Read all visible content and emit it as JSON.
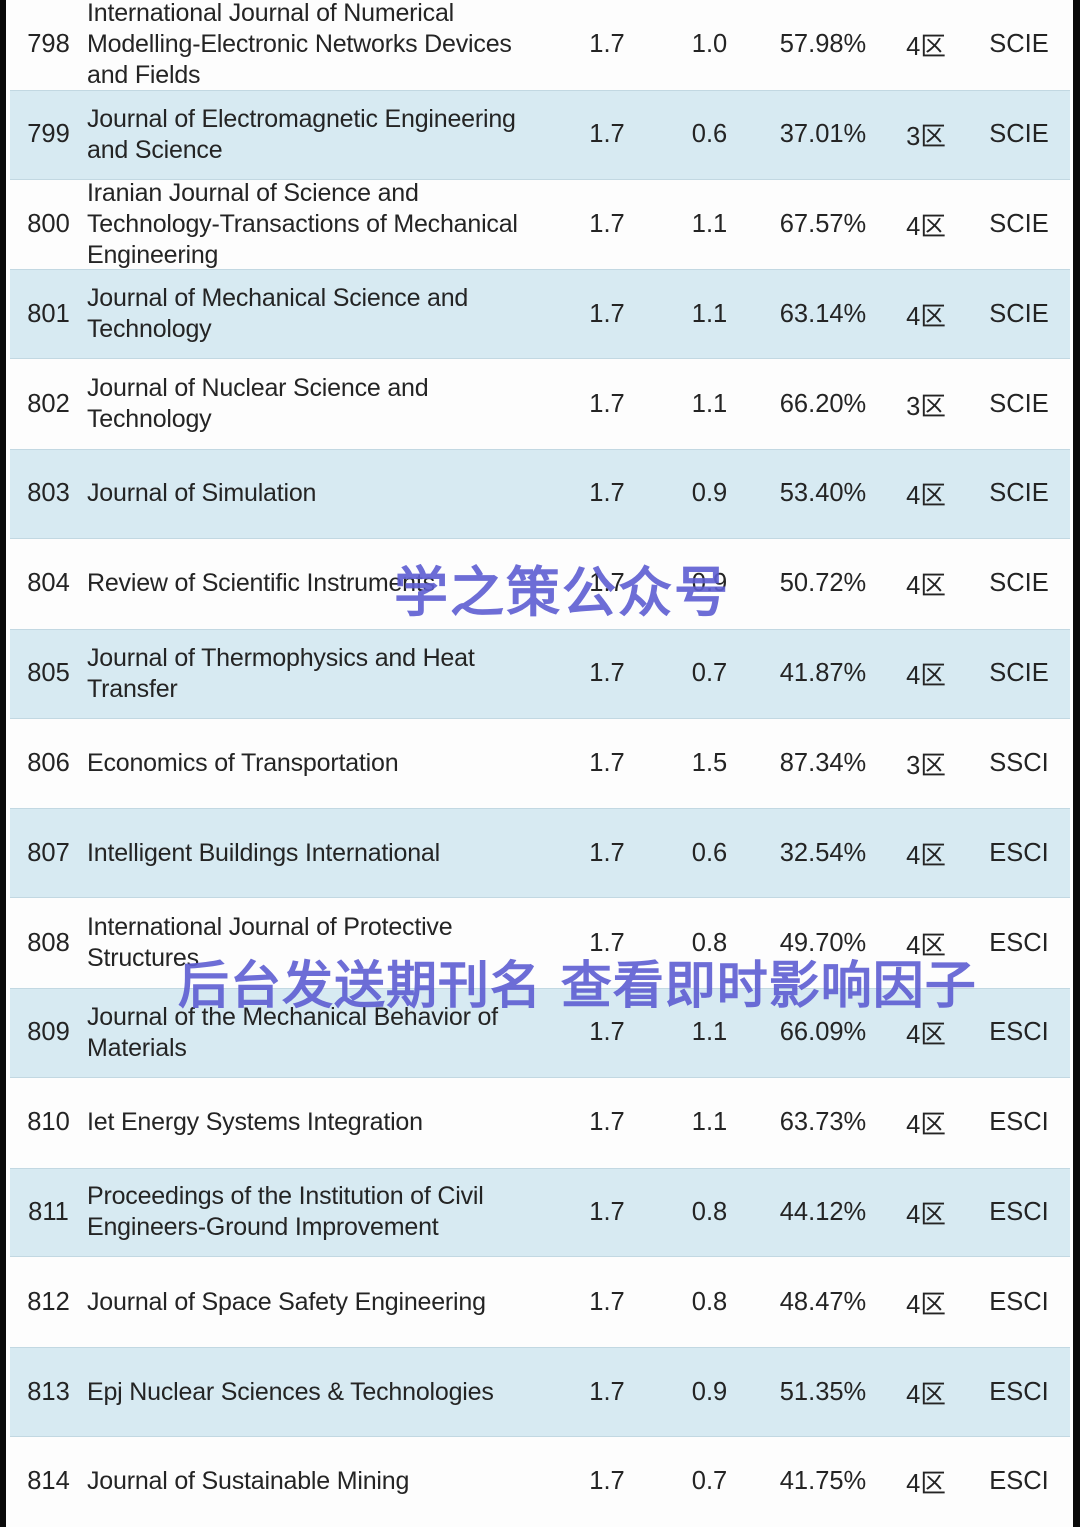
{
  "table": {
    "rows": [
      {
        "rank": "798",
        "name": "International Journal of Numerical Modelling-Electronic Networks Devices and Fields",
        "if_value": "1.7",
        "metric": "1.0",
        "percentile": "57.98%",
        "zone": "4区",
        "database": "SCIE"
      },
      {
        "rank": "799",
        "name": "Journal of Electromagnetic Engineering and Science",
        "if_value": "1.7",
        "metric": "0.6",
        "percentile": "37.01%",
        "zone": "3区",
        "database": "SCIE"
      },
      {
        "rank": "800",
        "name": "Iranian Journal of Science and Technology-Transactions of Mechanical Engineering",
        "if_value": "1.7",
        "metric": "1.1",
        "percentile": "67.57%",
        "zone": "4区",
        "database": "SCIE"
      },
      {
        "rank": "801",
        "name": "Journal of Mechanical Science and Technology",
        "if_value": "1.7",
        "metric": "1.1",
        "percentile": "63.14%",
        "zone": "4区",
        "database": "SCIE"
      },
      {
        "rank": "802",
        "name": "Journal of Nuclear Science and Technology",
        "if_value": "1.7",
        "metric": "1.1",
        "percentile": "66.20%",
        "zone": "3区",
        "database": "SCIE"
      },
      {
        "rank": "803",
        "name": "Journal of Simulation",
        "if_value": "1.7",
        "metric": "0.9",
        "percentile": "53.40%",
        "zone": "4区",
        "database": "SCIE"
      },
      {
        "rank": "804",
        "name": "Review of Scientific Instruments",
        "if_value": "1.7",
        "metric": "0.9",
        "percentile": "50.72%",
        "zone": "4区",
        "database": "SCIE"
      },
      {
        "rank": "805",
        "name": "Journal of Thermophysics and Heat Transfer",
        "if_value": "1.7",
        "metric": "0.7",
        "percentile": "41.87%",
        "zone": "4区",
        "database": "SCIE"
      },
      {
        "rank": "806",
        "name": "Economics of Transportation",
        "if_value": "1.7",
        "metric": "1.5",
        "percentile": "87.34%",
        "zone": "3区",
        "database": "SSCI"
      },
      {
        "rank": "807",
        "name": "Intelligent Buildings International",
        "if_value": "1.7",
        "metric": "0.6",
        "percentile": "32.54%",
        "zone": "4区",
        "database": "ESCI"
      },
      {
        "rank": "808",
        "name": "International Journal of Protective Structures",
        "if_value": "1.7",
        "metric": "0.8",
        "percentile": "49.70%",
        "zone": "4区",
        "database": "ESCI"
      },
      {
        "rank": "809",
        "name": "Journal of the Mechanical Behavior of Materials",
        "if_value": "1.7",
        "metric": "1.1",
        "percentile": "66.09%",
        "zone": "4区",
        "database": "ESCI"
      },
      {
        "rank": "810",
        "name": "Iet Energy Systems Integration",
        "if_value": "1.7",
        "metric": "1.1",
        "percentile": "63.73%",
        "zone": "4区",
        "database": "ESCI"
      },
      {
        "rank": "811",
        "name": "Proceedings of the Institution of Civil Engineers-Ground Improvement",
        "if_value": "1.7",
        "metric": "0.8",
        "percentile": "44.12%",
        "zone": "4区",
        "database": "ESCI"
      },
      {
        "rank": "812",
        "name": "Journal of Space Safety Engineering",
        "if_value": "1.7",
        "metric": "0.8",
        "percentile": "48.47%",
        "zone": "4区",
        "database": "ESCI"
      },
      {
        "rank": "813",
        "name": "Epj Nuclear Sciences & Technologies",
        "if_value": "1.7",
        "metric": "0.9",
        "percentile": "51.35%",
        "zone": "4区",
        "database": "ESCI"
      },
      {
        "rank": "814",
        "name": "Journal of Sustainable Mining",
        "if_value": "1.7",
        "metric": "0.7",
        "percentile": "41.75%",
        "zone": "4区",
        "database": "ESCI"
      }
    ]
  },
  "watermarks": {
    "center": "学之策公众号",
    "lower": "后台发送期刊名 查看即时影响因子"
  },
  "colors": {
    "row_alt_background": "#d7eaf2",
    "watermark": "#5e5ed2",
    "text": "#242424",
    "edge": "#0b0b0b"
  }
}
